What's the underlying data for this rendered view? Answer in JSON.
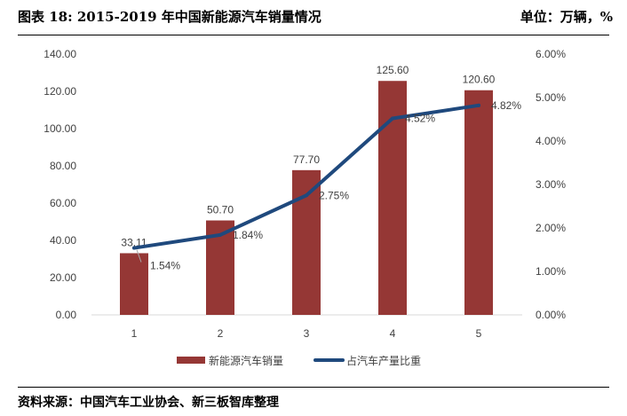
{
  "header": {
    "title": "图表 18: 2015-2019 年中国新能源汽车销量情况",
    "unit": "单位：万辆，%"
  },
  "footer": {
    "source": "资料来源：中国汽车工业协会、新三板智库整理"
  },
  "chart_data": {
    "type": "bar+line",
    "categories": [
      "1",
      "2",
      "3",
      "4",
      "5"
    ],
    "series": [
      {
        "name": "新能源汽车销量",
        "type": "bar",
        "axis": "left",
        "color": "#953735",
        "values": [
          33.11,
          50.7,
          77.7,
          125.6,
          120.6
        ],
        "labels": [
          "33.11",
          "50.70",
          "77.70",
          "125.60",
          "120.60"
        ]
      },
      {
        "name": "占汽车产量比重",
        "type": "line",
        "axis": "right",
        "color": "#1F497D",
        "values": [
          1.54,
          1.84,
          2.75,
          4.52,
          4.82
        ],
        "labels": [
          "1.54%",
          "1.84%",
          "2.75%",
          "4.52%",
          "4.82%"
        ]
      }
    ],
    "left_axis": {
      "ylim": [
        0,
        140
      ],
      "ticks": [
        "0.00",
        "20.00",
        "40.00",
        "60.00",
        "80.00",
        "100.00",
        "120.00",
        "140.00"
      ]
    },
    "right_axis": {
      "ylim": [
        0,
        6
      ],
      "ticks": [
        "0.00%",
        "1.00%",
        "2.00%",
        "3.00%",
        "4.00%",
        "5.00%",
        "6.00%"
      ]
    },
    "grid": false,
    "legend": "bottom"
  }
}
